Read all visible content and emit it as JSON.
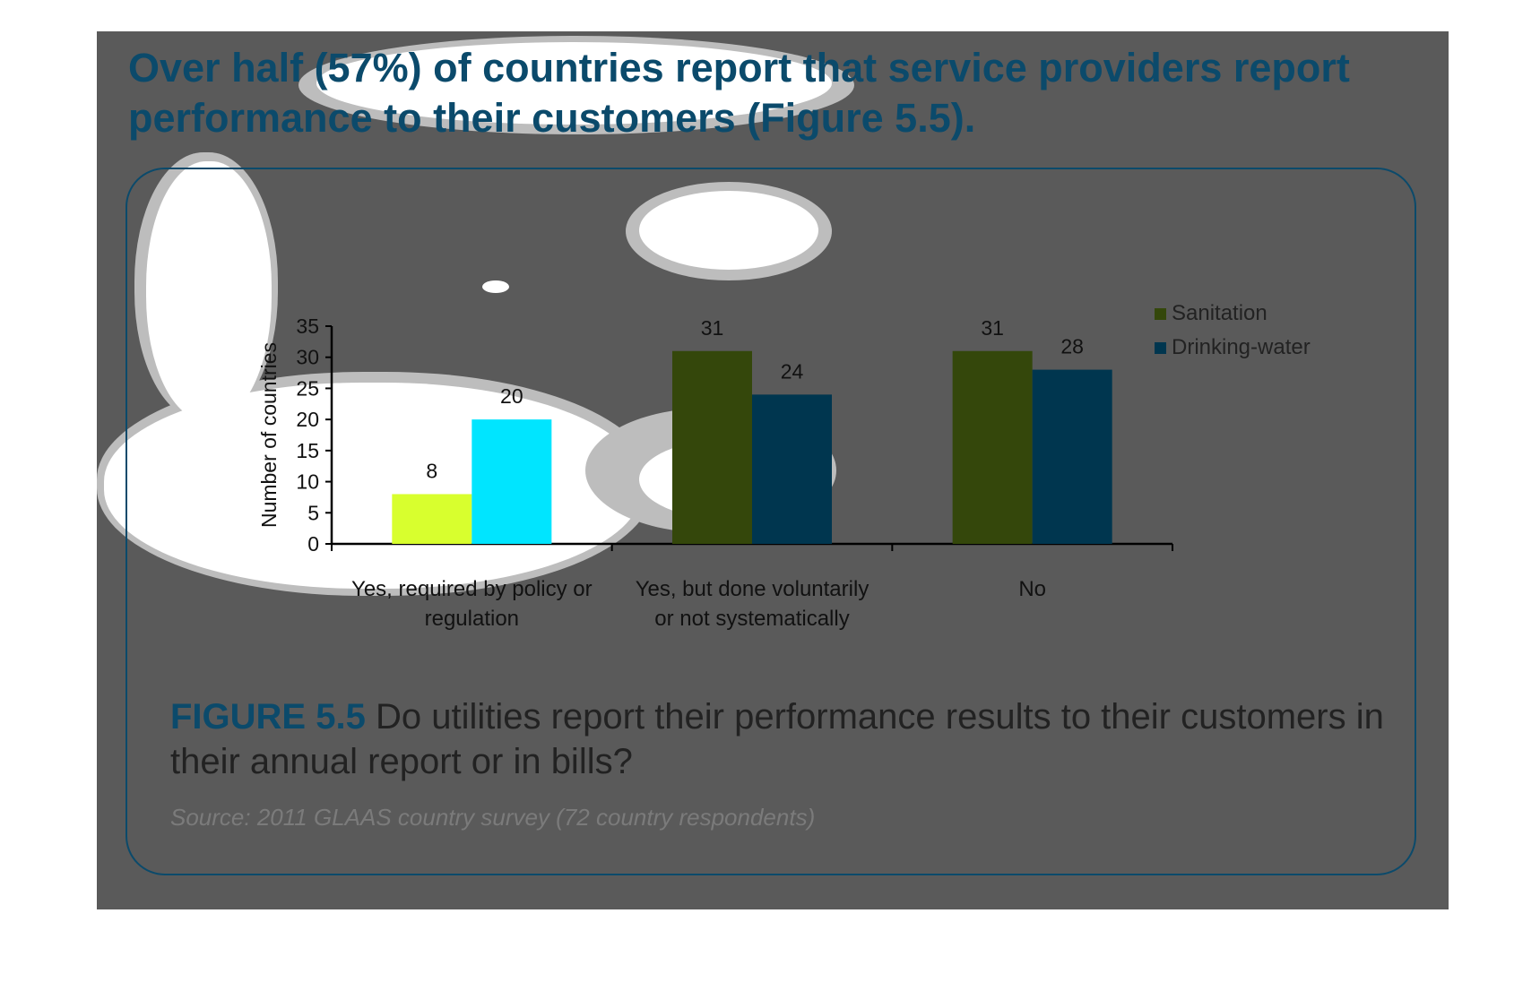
{
  "headline": "Over half (57%) of countries report that service providers report performance to their customers (Figure 5.5).",
  "caption": {
    "label": "FIGURE 5.5",
    "text": " Do utilities report their performance results to their customers in their annual report or in bills?"
  },
  "source": "Source: 2011 GLAAS country survey (72 country respondents)",
  "colors": {
    "slide_background": "#5a5a5a",
    "accent": "#0b4a6b",
    "sanitation": "#34470b",
    "drinking_water": "#00364f",
    "sanitation_highlight": "#d8ff2e",
    "drinking_water_highlight": "#00e5ff"
  },
  "chart_data": {
    "type": "bar",
    "ylabel": "Number of countries",
    "xlabel": "",
    "ylim": [
      0,
      35
    ],
    "yticks": [
      "0",
      "5",
      "10",
      "15",
      "20",
      "25",
      "30",
      "35"
    ],
    "categories": [
      [
        "Yes, required by policy or",
        "regulation"
      ],
      [
        "Yes, but done voluntarily",
        "or not systematically"
      ],
      [
        "No"
      ]
    ],
    "series": [
      {
        "name": "Sanitation",
        "values": [
          8,
          31,
          31
        ]
      },
      {
        "name": "Drinking-water",
        "values": [
          20,
          24,
          28
        ]
      }
    ],
    "legend_position": "right",
    "grid": false
  }
}
